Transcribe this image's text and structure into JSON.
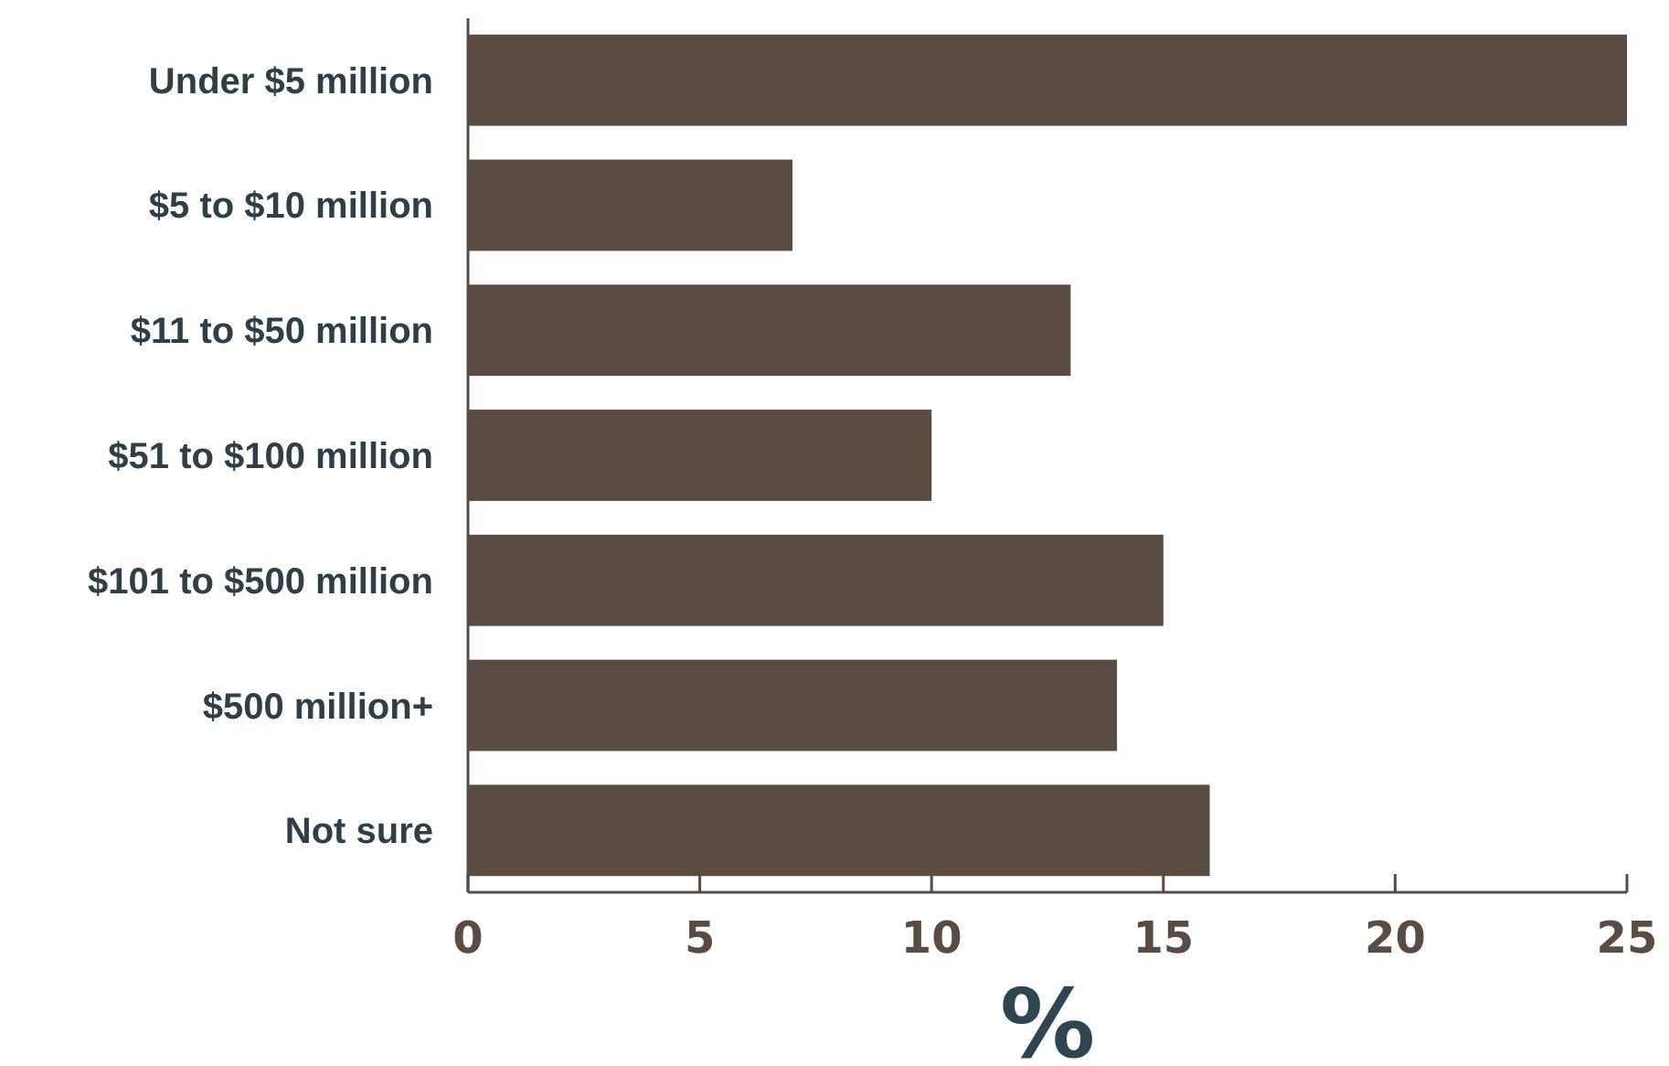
{
  "chart_data": {
    "type": "bar",
    "orientation": "horizontal",
    "categories": [
      "Under $5 million",
      "$5 to $10 million",
      "$11 to $50 million",
      "$51 to $100 million",
      "$101 to $500 million",
      "$500 million+",
      "Not sure"
    ],
    "values": [
      25,
      7,
      13,
      10,
      15,
      14,
      16
    ],
    "color": "#5a4c42",
    "xlabel": "%",
    "xlim": [
      0,
      25
    ],
    "xticks": [
      0,
      5,
      10,
      15,
      20,
      25
    ],
    "grid": false
  }
}
